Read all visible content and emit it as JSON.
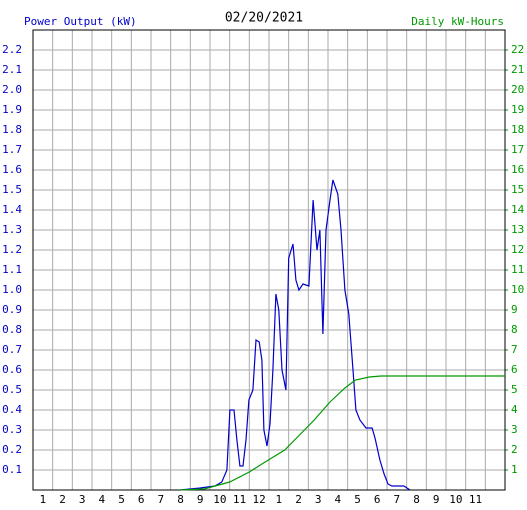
{
  "chart_data": {
    "type": "line",
    "title": "02/20/2021",
    "y_label": "Power Output (kW)",
    "y2_label": "Daily kW-Hours",
    "xlim": [
      0,
      24
    ],
    "xticks": [
      1,
      2,
      3,
      4,
      5,
      6,
      7,
      8,
      9,
      10,
      11,
      12,
      {
        "value": 13,
        "label": "1"
      },
      {
        "value": 14,
        "label": "2"
      },
      {
        "value": 15,
        "label": "3"
      },
      {
        "value": 16,
        "label": "4"
      },
      {
        "value": 17,
        "label": "5"
      },
      {
        "value": 18,
        "label": "6"
      },
      {
        "value": 19,
        "label": "7"
      },
      {
        "value": 20,
        "label": "8"
      },
      {
        "value": 21,
        "label": "9"
      },
      {
        "value": 22,
        "label": "10"
      },
      {
        "value": 23,
        "label": "11"
      }
    ],
    "ylim": [
      0,
      2.3
    ],
    "yticks": [
      0.1,
      0.2,
      0.3,
      0.4,
      0.5,
      0.6,
      0.7,
      0.8,
      0.9,
      {
        "value": 1,
        "label": "1.0"
      },
      1.1,
      1.2,
      1.3,
      1.4,
      1.5,
      1.6,
      1.7,
      1.8,
      1.9,
      {
        "value": 2,
        "label": "2.0"
      },
      2.1,
      2.2
    ],
    "y2lim": [
      0,
      23
    ],
    "y2ticks": [
      1,
      2,
      3,
      4,
      5,
      6,
      7,
      8,
      9,
      10,
      11,
      12,
      13,
      14,
      15,
      16,
      17,
      18,
      19,
      20,
      21,
      22
    ],
    "grid": true,
    "series": [
      {
        "name": "Power Output (kW)",
        "color": "#0000cc",
        "x": [
          7.47,
          8.5,
          9.25,
          9.6,
          9.86,
          10.01,
          10.22,
          10.37,
          10.52,
          10.68,
          10.83,
          10.98,
          11.18,
          11.34,
          11.5,
          11.64,
          11.74,
          11.9,
          12.05,
          12.2,
          12.35,
          12.5,
          12.66,
          12.86,
          13.0,
          13.22,
          13.37,
          13.52,
          13.73,
          14.03,
          14.24,
          14.44,
          14.59,
          14.74,
          14.9,
          15.1,
          15.25,
          15.5,
          15.66,
          15.86,
          16.06,
          16.27,
          16.42,
          16.62,
          16.93,
          17.24,
          17.39,
          17.64,
          17.85,
          18.05,
          18.25,
          18.86,
          19.17
        ],
        "values": [
          0,
          0.01,
          0.02,
          0.04,
          0.1,
          0.4,
          0.4,
          0.25,
          0.12,
          0.12,
          0.25,
          0.45,
          0.5,
          0.75,
          0.74,
          0.65,
          0.3,
          0.22,
          0.33,
          0.6,
          0.98,
          0.9,
          0.6,
          0.5,
          1.16,
          1.23,
          1.05,
          1.0,
          1.03,
          1.02,
          1.45,
          1.2,
          1.3,
          0.78,
          1.3,
          1.45,
          1.55,
          1.48,
          1.3,
          1.0,
          0.88,
          0.6,
          0.4,
          0.35,
          0.31,
          0.31,
          0.26,
          0.15,
          0.08,
          0.03,
          0.02,
          0.02,
          0
        ]
      },
      {
        "name": "Daily kW-Hours",
        "color": "#009900",
        "axis": "y2",
        "x": [
          7.47,
          8.7,
          10.0,
          11.0,
          11.8,
          12.8,
          13.6,
          14.3,
          15.1,
          15.86,
          16.4,
          17.1,
          17.7,
          18.65,
          24
        ],
        "values": [
          0,
          0.05,
          0.4,
          0.9,
          1.4,
          2.0,
          2.8,
          3.5,
          4.4,
          5.1,
          5.5,
          5.65,
          5.7,
          5.7,
          5.7
        ]
      }
    ]
  }
}
